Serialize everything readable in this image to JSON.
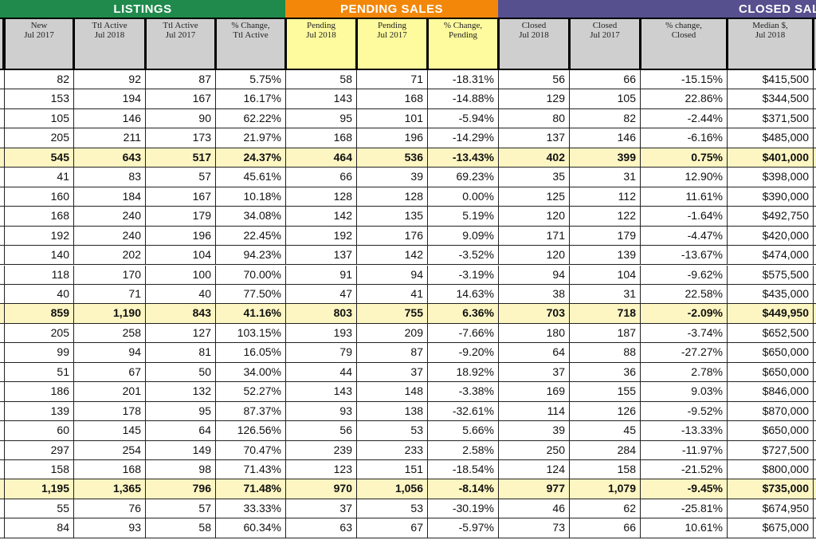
{
  "groups": {
    "listings": "LISTINGS",
    "pending": "PENDING SALES",
    "closed": "CLOSED SALES"
  },
  "colors": {
    "listings": "#1f8a4c",
    "pending": "#f2870a",
    "closed": "#56508f",
    "summary_row": "#fdf6c3",
    "pending_header": "#fefb9e",
    "header": "#cfcfcf"
  },
  "columns": [
    "New\nJul 2017",
    "Ttl Active\nJul 2018",
    "Ttl Active\nJul 2017",
    "% Change,\nTtl Active",
    "Pending\nJul 2018",
    "Pending\nJul 2017",
    "% Change,\nPending",
    "Closed\nJul 2018",
    "Closed\nJul 2017",
    "% change,\nClosed",
    "Median $,\nJul 2018"
  ],
  "rows": [
    {
      "v": [
        "82",
        "92",
        "87",
        "5.75%",
        "58",
        "71",
        "-18.31%",
        "56",
        "66",
        "-15.15%",
        "$415,500"
      ]
    },
    {
      "v": [
        "153",
        "194",
        "167",
        "16.17%",
        "143",
        "168",
        "-14.88%",
        "129",
        "105",
        "22.86%",
        "$344,500"
      ]
    },
    {
      "v": [
        "105",
        "146",
        "90",
        "62.22%",
        "95",
        "101",
        "-5.94%",
        "80",
        "82",
        "-2.44%",
        "$371,500"
      ]
    },
    {
      "v": [
        "205",
        "211",
        "173",
        "21.97%",
        "168",
        "196",
        "-14.29%",
        "137",
        "146",
        "-6.16%",
        "$485,000"
      ]
    },
    {
      "v": [
        "545",
        "643",
        "517",
        "24.37%",
        "464",
        "536",
        "-13.43%",
        "402",
        "399",
        "0.75%",
        "$401,000"
      ],
      "summary": true
    },
    {
      "v": [
        "41",
        "83",
        "57",
        "45.61%",
        "66",
        "39",
        "69.23%",
        "35",
        "31",
        "12.90%",
        "$398,000"
      ]
    },
    {
      "v": [
        "160",
        "184",
        "167",
        "10.18%",
        "128",
        "128",
        "0.00%",
        "125",
        "112",
        "11.61%",
        "$390,000"
      ]
    },
    {
      "v": [
        "168",
        "240",
        "179",
        "34.08%",
        "142",
        "135",
        "5.19%",
        "120",
        "122",
        "-1.64%",
        "$492,750"
      ]
    },
    {
      "v": [
        "192",
        "240",
        "196",
        "22.45%",
        "192",
        "176",
        "9.09%",
        "171",
        "179",
        "-4.47%",
        "$420,000"
      ]
    },
    {
      "v": [
        "140",
        "202",
        "104",
        "94.23%",
        "137",
        "142",
        "-3.52%",
        "120",
        "139",
        "-13.67%",
        "$474,000"
      ]
    },
    {
      "v": [
        "118",
        "170",
        "100",
        "70.00%",
        "91",
        "94",
        "-3.19%",
        "94",
        "104",
        "-9.62%",
        "$575,500"
      ]
    },
    {
      "v": [
        "40",
        "71",
        "40",
        "77.50%",
        "47",
        "41",
        "14.63%",
        "38",
        "31",
        "22.58%",
        "$435,000"
      ]
    },
    {
      "v": [
        "859",
        "1,190",
        "843",
        "41.16%",
        "803",
        "755",
        "6.36%",
        "703",
        "718",
        "-2.09%",
        "$449,950"
      ],
      "summary": true
    },
    {
      "v": [
        "205",
        "258",
        "127",
        "103.15%",
        "193",
        "209",
        "-7.66%",
        "180",
        "187",
        "-3.74%",
        "$652,500"
      ]
    },
    {
      "v": [
        "99",
        "94",
        "81",
        "16.05%",
        "79",
        "87",
        "-9.20%",
        "64",
        "88",
        "-27.27%",
        "$650,000"
      ]
    },
    {
      "v": [
        "51",
        "67",
        "50",
        "34.00%",
        "44",
        "37",
        "18.92%",
        "37",
        "36",
        "2.78%",
        "$650,000"
      ]
    },
    {
      "v": [
        "186",
        "201",
        "132",
        "52.27%",
        "143",
        "148",
        "-3.38%",
        "169",
        "155",
        "9.03%",
        "$846,000"
      ]
    },
    {
      "v": [
        "139",
        "178",
        "95",
        "87.37%",
        "93",
        "138",
        "-32.61%",
        "114",
        "126",
        "-9.52%",
        "$870,000"
      ]
    },
    {
      "v": [
        "60",
        "145",
        "64",
        "126.56%",
        "56",
        "53",
        "5.66%",
        "39",
        "45",
        "-13.33%",
        "$650,000"
      ]
    },
    {
      "v": [
        "297",
        "254",
        "149",
        "70.47%",
        "239",
        "233",
        "2.58%",
        "250",
        "284",
        "-11.97%",
        "$727,500"
      ]
    },
    {
      "v": [
        "158",
        "168",
        "98",
        "71.43%",
        "123",
        "151",
        "-18.54%",
        "124",
        "158",
        "-21.52%",
        "$800,000"
      ]
    },
    {
      "v": [
        "1,195",
        "1,365",
        "796",
        "71.48%",
        "970",
        "1,056",
        "-8.14%",
        "977",
        "1,079",
        "-9.45%",
        "$735,000"
      ],
      "summary": true
    },
    {
      "v": [
        "55",
        "76",
        "57",
        "33.33%",
        "37",
        "53",
        "-30.19%",
        "46",
        "62",
        "-25.81%",
        "$674,950"
      ]
    },
    {
      "v": [
        "84",
        "93",
        "58",
        "60.34%",
        "63",
        "67",
        "-5.97%",
        "73",
        "66",
        "10.61%",
        "$675,000"
      ]
    }
  ]
}
